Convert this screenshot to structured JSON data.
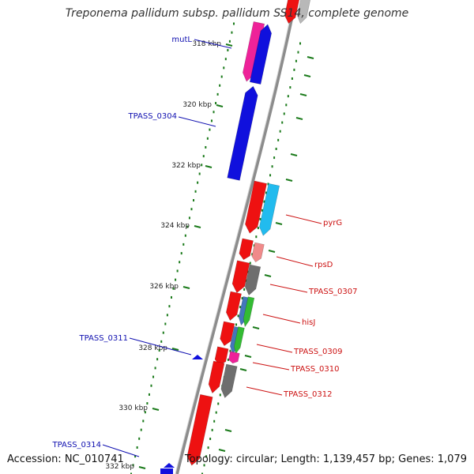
{
  "title": "Treponema pallidum subsp. pallidum SS14, complete genome",
  "footer": {
    "accession": "Accession: NC_010741",
    "stats": "Topology: circular; Length: 1,139,457 bp; Genes: 1,079"
  },
  "colors": {
    "backbone": "#8c8c8c",
    "tick": "#1a7a1a",
    "label_blue": "#1010b0",
    "label_red": "#cc1111"
  },
  "ticks": [
    "318 kbp",
    "320 kbp",
    "322 kbp",
    "324 kbp",
    "326 kbp",
    "328 kbp",
    "330 kbp",
    "332 kbp"
  ],
  "labels": [
    {
      "text": "mutL",
      "color": "blue"
    },
    {
      "text": "TPASS_0304",
      "color": "blue"
    },
    {
      "text": "TPASS_0311",
      "color": "blue"
    },
    {
      "text": "TPASS_0314",
      "color": "blue"
    },
    {
      "text": "pyrG",
      "color": "red"
    },
    {
      "text": "rpsD",
      "color": "red"
    },
    {
      "text": "TPASS_0307",
      "color": "red"
    },
    {
      "text": "hisJ",
      "color": "red"
    },
    {
      "text": "TPASS_0309",
      "color": "red"
    },
    {
      "text": "TPASS_0310",
      "color": "red"
    },
    {
      "text": "TPASS_0312",
      "color": "red"
    }
  ]
}
